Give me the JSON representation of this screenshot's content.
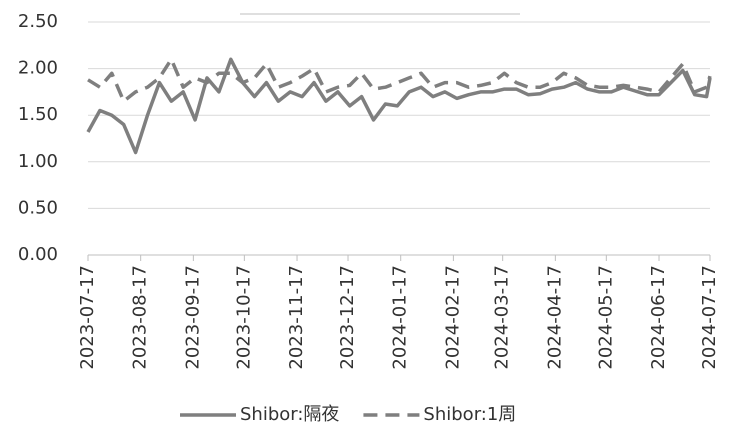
{
  "chart_data": {
    "type": "line",
    "x": [
      "2023-07-17",
      "2023-07-24",
      "2023-07-31",
      "2023-08-07",
      "2023-08-14",
      "2023-08-21",
      "2023-08-28",
      "2023-09-04",
      "2023-09-11",
      "2023-09-18",
      "2023-09-25",
      "2023-10-02",
      "2023-10-09",
      "2023-10-16",
      "2023-10-23",
      "2023-10-30",
      "2023-11-06",
      "2023-11-13",
      "2023-11-20",
      "2023-11-27",
      "2023-12-04",
      "2023-12-11",
      "2023-12-18",
      "2023-12-25",
      "2024-01-01",
      "2024-01-08",
      "2024-01-15",
      "2024-01-22",
      "2024-01-29",
      "2024-02-05",
      "2024-02-12",
      "2024-02-19",
      "2024-02-26",
      "2024-03-04",
      "2024-03-11",
      "2024-03-18",
      "2024-03-25",
      "2024-04-01",
      "2024-04-08",
      "2024-04-15",
      "2024-04-22",
      "2024-04-29",
      "2024-05-06",
      "2024-05-13",
      "2024-05-20",
      "2024-05-27",
      "2024-06-03",
      "2024-06-10",
      "2024-06-17",
      "2024-06-24",
      "2024-07-01",
      "2024-07-08",
      "2024-07-15",
      "2024-07-17"
    ],
    "series": [
      {
        "name": "Shibor:隔夜",
        "color": "#7f7f7f",
        "dash": false,
        "values": [
          1.32,
          1.55,
          1.5,
          1.4,
          1.1,
          1.5,
          1.85,
          1.65,
          1.75,
          1.45,
          1.9,
          1.75,
          2.1,
          1.85,
          1.7,
          1.85,
          1.65,
          1.75,
          1.7,
          1.85,
          1.65,
          1.75,
          1.6,
          1.7,
          1.45,
          1.62,
          1.6,
          1.75,
          1.8,
          1.7,
          1.75,
          1.68,
          1.72,
          1.75,
          1.75,
          1.78,
          1.78,
          1.72,
          1.73,
          1.78,
          1.8,
          1.85,
          1.78,
          1.75,
          1.75,
          1.8,
          1.76,
          1.72,
          1.72,
          1.85,
          1.98,
          1.72,
          1.7,
          1.9
        ]
      },
      {
        "name": "Shibor:1周",
        "color": "#7f7f7f",
        "dash": true,
        "values": [
          1.88,
          1.8,
          1.95,
          1.65,
          1.75,
          1.8,
          1.9,
          2.1,
          1.8,
          1.9,
          1.85,
          1.95,
          1.95,
          1.85,
          1.9,
          2.05,
          1.8,
          1.85,
          1.92,
          2.0,
          1.75,
          1.8,
          1.82,
          1.95,
          1.78,
          1.8,
          1.85,
          1.9,
          1.95,
          1.8,
          1.85,
          1.85,
          1.8,
          1.82,
          1.85,
          1.95,
          1.85,
          1.8,
          1.8,
          1.85,
          1.95,
          1.9,
          1.82,
          1.8,
          1.8,
          1.82,
          1.8,
          1.78,
          1.75,
          1.9,
          2.05,
          1.75,
          1.8,
          1.92
        ]
      }
    ],
    "xlim": [
      "2023-07-17",
      "2024-07-17"
    ],
    "xticks": [
      "2023-07-17",
      "2023-08-17",
      "2023-09-17",
      "2023-10-17",
      "2023-11-17",
      "2023-12-17",
      "2024-01-17",
      "2024-02-17",
      "2024-03-17",
      "2024-04-17",
      "2024-05-17",
      "2024-06-17",
      "2024-07-17"
    ],
    "ylim": [
      0,
      2.5
    ],
    "yticks": [
      {
        "value": 0,
        "label": "0.00"
      },
      {
        "value": 0.5,
        "label": "0.50"
      },
      {
        "value": 1,
        "label": "1.00"
      },
      {
        "value": 1.5,
        "label": "1.50"
      },
      {
        "value": 2,
        "label": "2.00"
      },
      {
        "value": 2.5,
        "label": "2.50"
      }
    ],
    "grid": true,
    "legend": "bottom"
  }
}
